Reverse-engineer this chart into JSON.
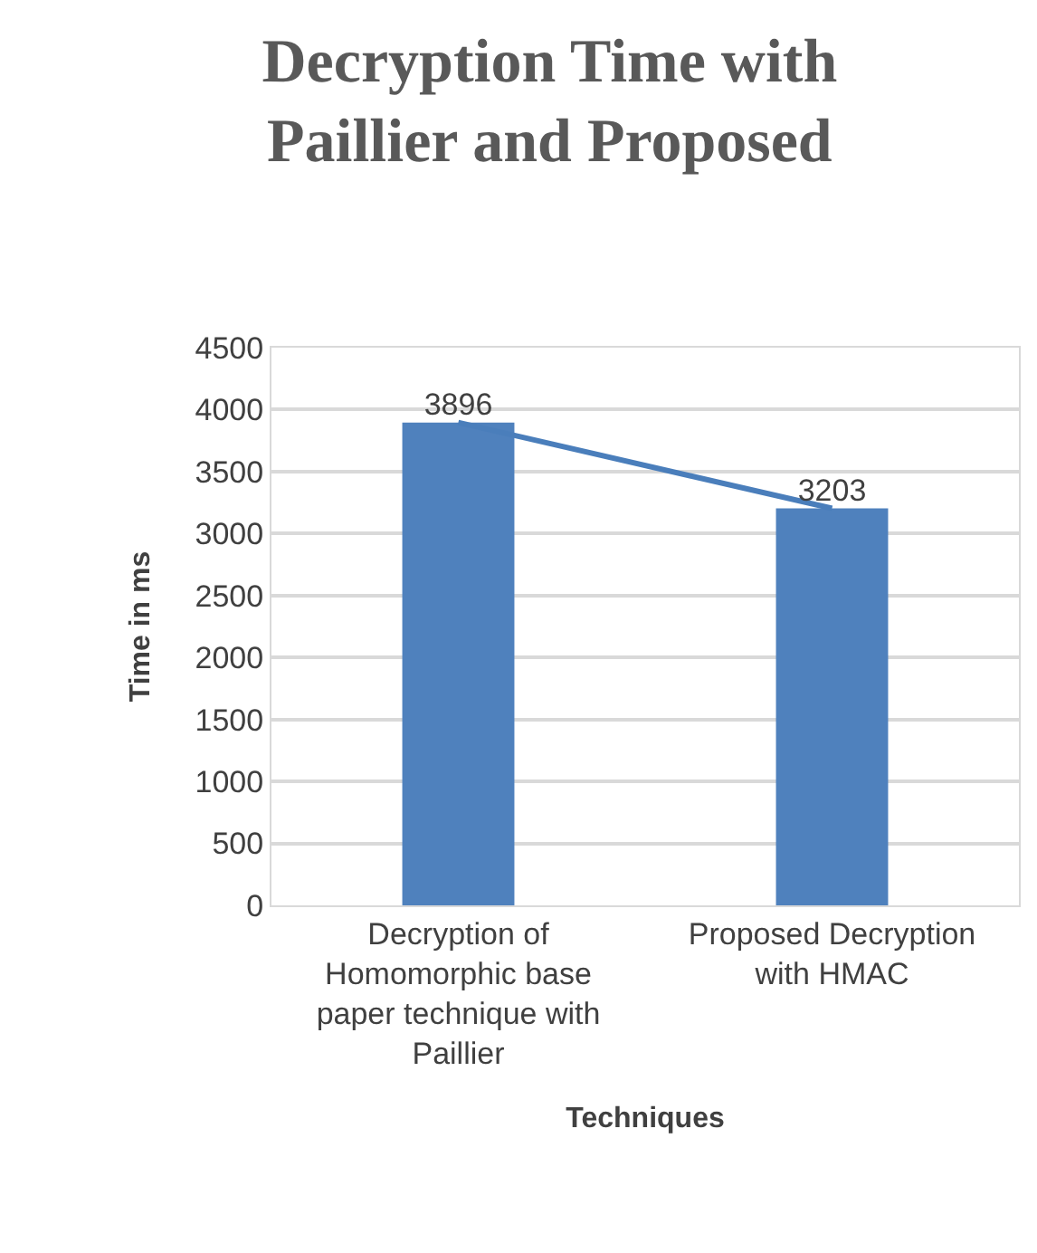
{
  "chart_data": {
    "type": "bar",
    "title": "Decryption Time with Paillier and Proposed",
    "xlabel": "Techniques",
    "ylabel": "Time in ms",
    "categories": [
      "Decryption of Homomorphic base paper technique with Paillier",
      "Proposed Decryption with HMAC"
    ],
    "series": [
      {
        "color": "#4f81bd",
        "values": [
          3896,
          3203
        ]
      },
      {
        "type": "line",
        "color": "#4a7ebb",
        "values": [
          3896,
          3203
        ],
        "value_labels": [
          "3896",
          "3203"
        ]
      }
    ],
    "marker": "none",
    "ylim": [
      0,
      4500
    ],
    "yticks": [
      0,
      500,
      1000,
      1500,
      2000,
      2500,
      3000,
      3500,
      4000,
      4500
    ],
    "grid": "y"
  }
}
